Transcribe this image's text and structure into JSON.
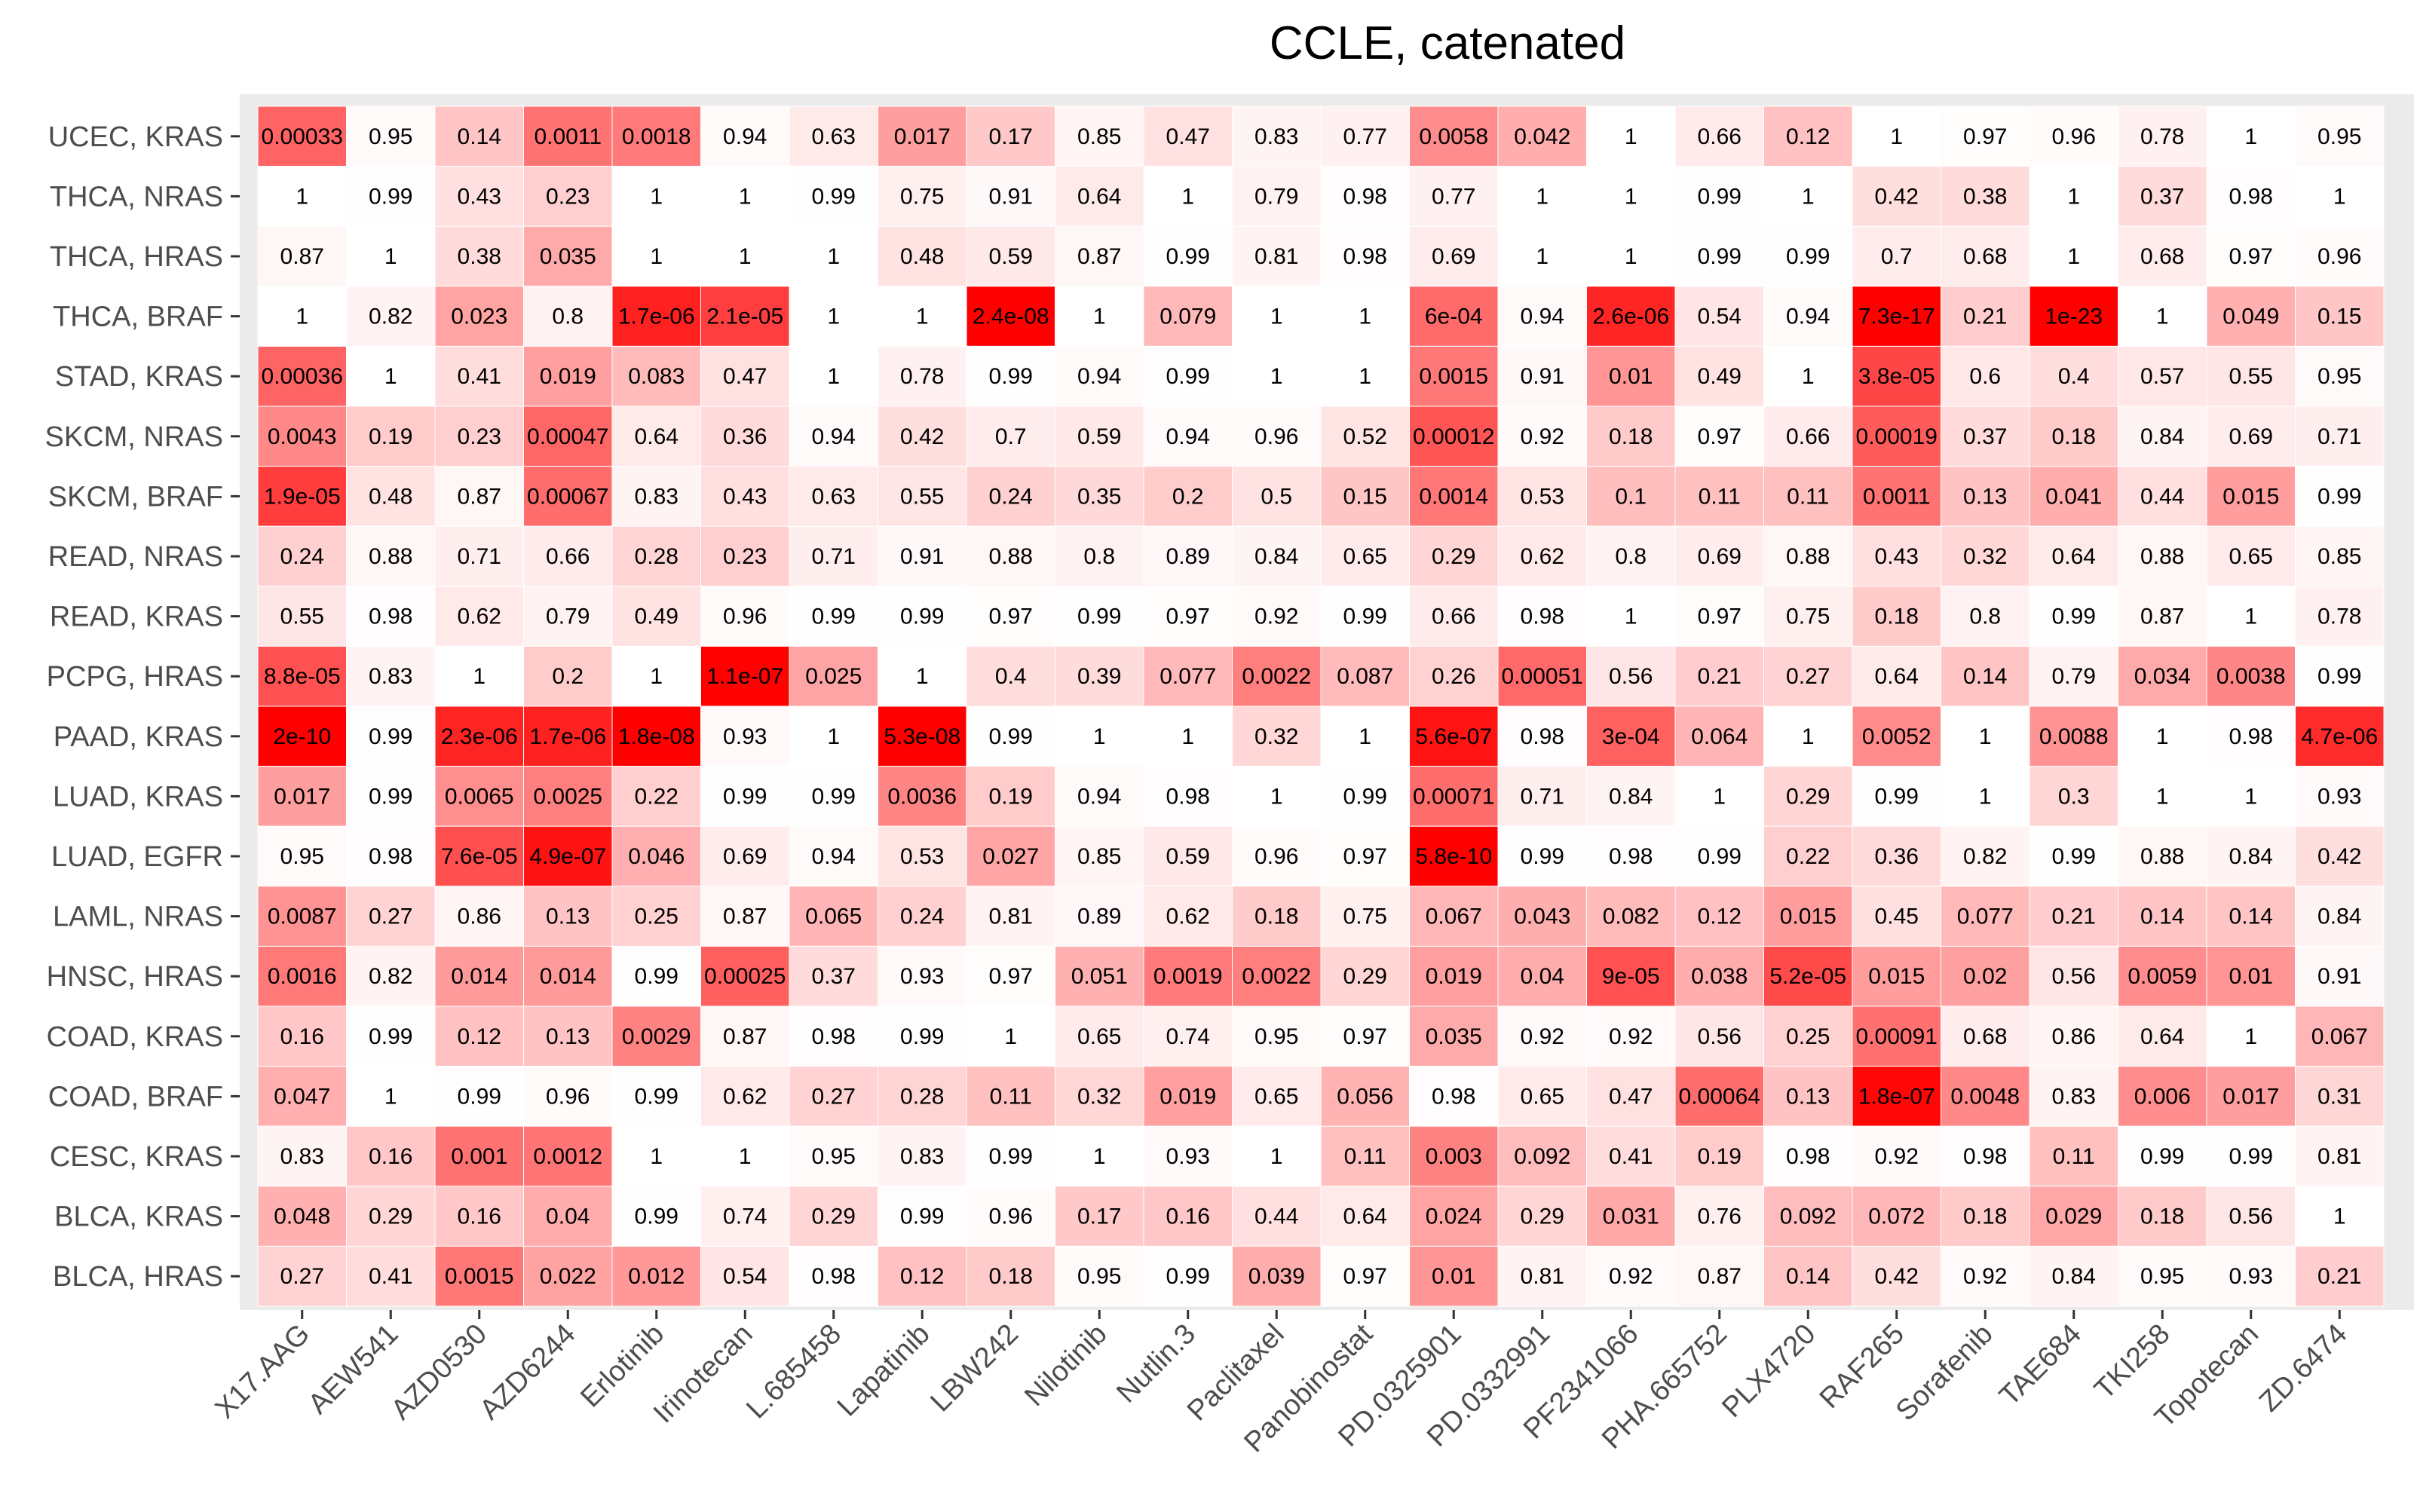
{
  "chart_data": {
    "type": "heatmap",
    "title": "CCLE, catenated",
    "xlabel": "",
    "ylabel": "",
    "columns": [
      "X17.AAG",
      "AEW541",
      "AZD0530",
      "AZD6244",
      "Erlotinib",
      "Irinotecan",
      "L.685458",
      "Lapatinib",
      "LBW242",
      "Nilotinib",
      "Nutlin.3",
      "Paclitaxel",
      "Panobinostat",
      "PD.0325901",
      "PD.0332991",
      "PF2341066",
      "PHA.665752",
      "PLX4720",
      "RAF265",
      "Sorafenib",
      "TAE684",
      "TKI258",
      "Topotecan",
      "ZD.6474"
    ],
    "rows": [
      "UCEC, KRAS",
      "THCA, NRAS",
      "THCA, HRAS",
      "THCA, BRAF",
      "STAD, KRAS",
      "SKCM, NRAS",
      "SKCM, BRAF",
      "READ, NRAS",
      "READ, KRAS",
      "PCPG, HRAS",
      "PAAD, KRAS",
      "LUAD, KRAS",
      "LUAD, EGFR",
      "LAML, NRAS",
      "HNSC, HRAS",
      "COAD, KRAS",
      "COAD, BRAF",
      "CESC, KRAS",
      "BLCA, KRAS",
      "BLCA, HRAS"
    ],
    "values": [
      [
        "0.00033",
        "0.95",
        "0.14",
        "0.0011",
        "0.0018",
        "0.94",
        "0.63",
        "0.017",
        "0.17",
        "0.85",
        "0.47",
        "0.83",
        "0.77",
        "0.0058",
        "0.042",
        "1",
        "0.66",
        "0.12",
        "1",
        "0.97",
        "0.96",
        "0.78",
        "1",
        "0.95"
      ],
      [
        "1",
        "0.99",
        "0.43",
        "0.23",
        "1",
        "1",
        "0.99",
        "0.75",
        "0.91",
        "0.64",
        "1",
        "0.79",
        "0.98",
        "0.77",
        "1",
        "1",
        "0.99",
        "1",
        "0.42",
        "0.38",
        "1",
        "0.37",
        "0.98",
        "1"
      ],
      [
        "0.87",
        "1",
        "0.38",
        "0.035",
        "1",
        "1",
        "1",
        "0.48",
        "0.59",
        "0.87",
        "0.99",
        "0.81",
        "0.98",
        "0.69",
        "1",
        "1",
        "0.99",
        "0.99",
        "0.7",
        "0.68",
        "1",
        "0.68",
        "0.97",
        "0.96"
      ],
      [
        "1",
        "0.82",
        "0.023",
        "0.8",
        "1.7e-06",
        "2.1e-05",
        "1",
        "1",
        "2.4e-08",
        "1",
        "0.079",
        "1",
        "1",
        "6e-04",
        "0.94",
        "2.6e-06",
        "0.54",
        "0.94",
        "7.3e-17",
        "0.21",
        "1e-23",
        "1",
        "0.049",
        "0.15"
      ],
      [
        "0.00036",
        "1",
        "0.41",
        "0.019",
        "0.083",
        "0.47",
        "1",
        "0.78",
        "0.99",
        "0.94",
        "0.99",
        "1",
        "1",
        "0.0015",
        "0.91",
        "0.01",
        "0.49",
        "1",
        "3.8e-05",
        "0.6",
        "0.4",
        "0.57",
        "0.55",
        "0.95"
      ],
      [
        "0.0043",
        "0.19",
        "0.23",
        "0.00047",
        "0.64",
        "0.36",
        "0.94",
        "0.42",
        "0.7",
        "0.59",
        "0.94",
        "0.96",
        "0.52",
        "0.00012",
        "0.92",
        "0.18",
        "0.97",
        "0.66",
        "0.00019",
        "0.37",
        "0.18",
        "0.84",
        "0.69",
        "0.71"
      ],
      [
        "1.9e-05",
        "0.48",
        "0.87",
        "0.00067",
        "0.83",
        "0.43",
        "0.63",
        "0.55",
        "0.24",
        "0.35",
        "0.2",
        "0.5",
        "0.15",
        "0.0014",
        "0.53",
        "0.1",
        "0.11",
        "0.11",
        "0.0011",
        "0.13",
        "0.041",
        "0.44",
        "0.015",
        "0.99"
      ],
      [
        "0.24",
        "0.88",
        "0.71",
        "0.66",
        "0.28",
        "0.23",
        "0.71",
        "0.91",
        "0.88",
        "0.8",
        "0.89",
        "0.84",
        "0.65",
        "0.29",
        "0.62",
        "0.8",
        "0.69",
        "0.88",
        "0.43",
        "0.32",
        "0.64",
        "0.88",
        "0.65",
        "0.85"
      ],
      [
        "0.55",
        "0.98",
        "0.62",
        "0.79",
        "0.49",
        "0.96",
        "0.99",
        "0.99",
        "0.97",
        "0.99",
        "0.97",
        "0.92",
        "0.99",
        "0.66",
        "0.98",
        "1",
        "0.97",
        "0.75",
        "0.18",
        "0.8",
        "0.99",
        "0.87",
        "1",
        "0.78"
      ],
      [
        "8.8e-05",
        "0.83",
        "1",
        "0.2",
        "1",
        "1.1e-07",
        "0.025",
        "1",
        "0.4",
        "0.39",
        "0.077",
        "0.0022",
        "0.087",
        "0.26",
        "0.00051",
        "0.56",
        "0.21",
        "0.27",
        "0.64",
        "0.14",
        "0.79",
        "0.034",
        "0.0038",
        "0.99"
      ],
      [
        "2e-10",
        "0.99",
        "2.3e-06",
        "1.7e-06",
        "1.8e-08",
        "0.93",
        "1",
        "5.3e-08",
        "0.99",
        "1",
        "1",
        "0.32",
        "1",
        "5.6e-07",
        "0.98",
        "3e-04",
        "0.064",
        "1",
        "0.0052",
        "1",
        "0.0088",
        "1",
        "0.98",
        "4.7e-06"
      ],
      [
        "0.017",
        "0.99",
        "0.0065",
        "0.0025",
        "0.22",
        "0.99",
        "0.99",
        "0.0036",
        "0.19",
        "0.94",
        "0.98",
        "1",
        "0.99",
        "0.00071",
        "0.71",
        "0.84",
        "1",
        "0.29",
        "0.99",
        "1",
        "0.3",
        "1",
        "1",
        "0.93"
      ],
      [
        "0.95",
        "0.98",
        "7.6e-05",
        "4.9e-07",
        "0.046",
        "0.69",
        "0.94",
        "0.53",
        "0.027",
        "0.85",
        "0.59",
        "0.96",
        "0.97",
        "5.8e-10",
        "0.99",
        "0.98",
        "0.99",
        "0.22",
        "0.36",
        "0.82",
        "0.99",
        "0.88",
        "0.84",
        "0.42"
      ],
      [
        "0.0087",
        "0.27",
        "0.86",
        "0.13",
        "0.25",
        "0.87",
        "0.065",
        "0.24",
        "0.81",
        "0.89",
        "0.62",
        "0.18",
        "0.75",
        "0.067",
        "0.043",
        "0.082",
        "0.12",
        "0.015",
        "0.45",
        "0.077",
        "0.21",
        "0.14",
        "0.14",
        "0.84"
      ],
      [
        "0.0016",
        "0.82",
        "0.014",
        "0.014",
        "0.99",
        "0.00025",
        "0.37",
        "0.93",
        "0.97",
        "0.051",
        "0.0019",
        "0.0022",
        "0.29",
        "0.019",
        "0.04",
        "9e-05",
        "0.038",
        "5.2e-05",
        "0.015",
        "0.02",
        "0.56",
        "0.0059",
        "0.01",
        "0.91"
      ],
      [
        "0.16",
        "0.99",
        "0.12",
        "0.13",
        "0.0029",
        "0.87",
        "0.98",
        "0.99",
        "1",
        "0.65",
        "0.74",
        "0.95",
        "0.97",
        "0.035",
        "0.92",
        "0.92",
        "0.56",
        "0.25",
        "0.00091",
        "0.68",
        "0.86",
        "0.64",
        "1",
        "0.067"
      ],
      [
        "0.047",
        "1",
        "0.99",
        "0.96",
        "0.99",
        "0.62",
        "0.27",
        "0.28",
        "0.11",
        "0.32",
        "0.019",
        "0.65",
        "0.056",
        "0.98",
        "0.65",
        "0.47",
        "0.00064",
        "0.13",
        "1.8e-07",
        "0.0048",
        "0.83",
        "0.006",
        "0.017",
        "0.31"
      ],
      [
        "0.83",
        "0.16",
        "0.001",
        "0.0012",
        "1",
        "1",
        "0.95",
        "0.83",
        "0.99",
        "1",
        "0.93",
        "1",
        "0.11",
        "0.003",
        "0.092",
        "0.41",
        "0.19",
        "0.98",
        "0.92",
        "0.98",
        "0.11",
        "0.99",
        "0.99",
        "0.81"
      ],
      [
        "0.048",
        "0.29",
        "0.16",
        "0.04",
        "0.99",
        "0.74",
        "0.29",
        "0.99",
        "0.96",
        "0.17",
        "0.16",
        "0.44",
        "0.64",
        "0.024",
        "0.29",
        "0.031",
        "0.76",
        "0.092",
        "0.072",
        "0.18",
        "0.029",
        "0.18",
        "0.56",
        "1"
      ],
      [
        "0.27",
        "0.41",
        "0.0015",
        "0.022",
        "0.012",
        "0.54",
        "0.98",
        "0.12",
        "0.18",
        "0.95",
        "0.99",
        "0.039",
        "0.97",
        "0.01",
        "0.81",
        "0.92",
        "0.87",
        "0.14",
        "0.42",
        "0.92",
        "0.84",
        "0.95",
        "0.93",
        "0.21"
      ]
    ],
    "color_scale": {
      "low_color": "#ffffff",
      "high_color": "#ff0000",
      "transform": "-log10(p)"
    },
    "legend": "none",
    "panel_background": "#ebebeb"
  }
}
